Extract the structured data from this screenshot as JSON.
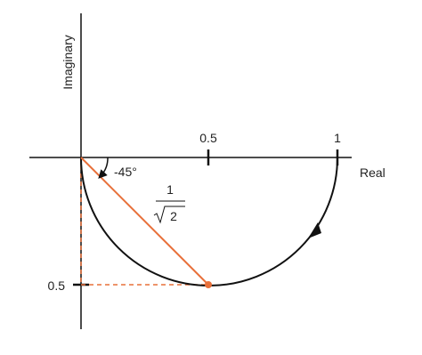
{
  "axes": {
    "x_label": "Real",
    "y_label": "Imaginary"
  },
  "ticks": {
    "x": [
      "0.5",
      "1"
    ],
    "y": [
      "0.5"
    ]
  },
  "annotations": {
    "angle": "-45°",
    "magnitude_numerator": "1",
    "magnitude_radicand": "2"
  }
}
